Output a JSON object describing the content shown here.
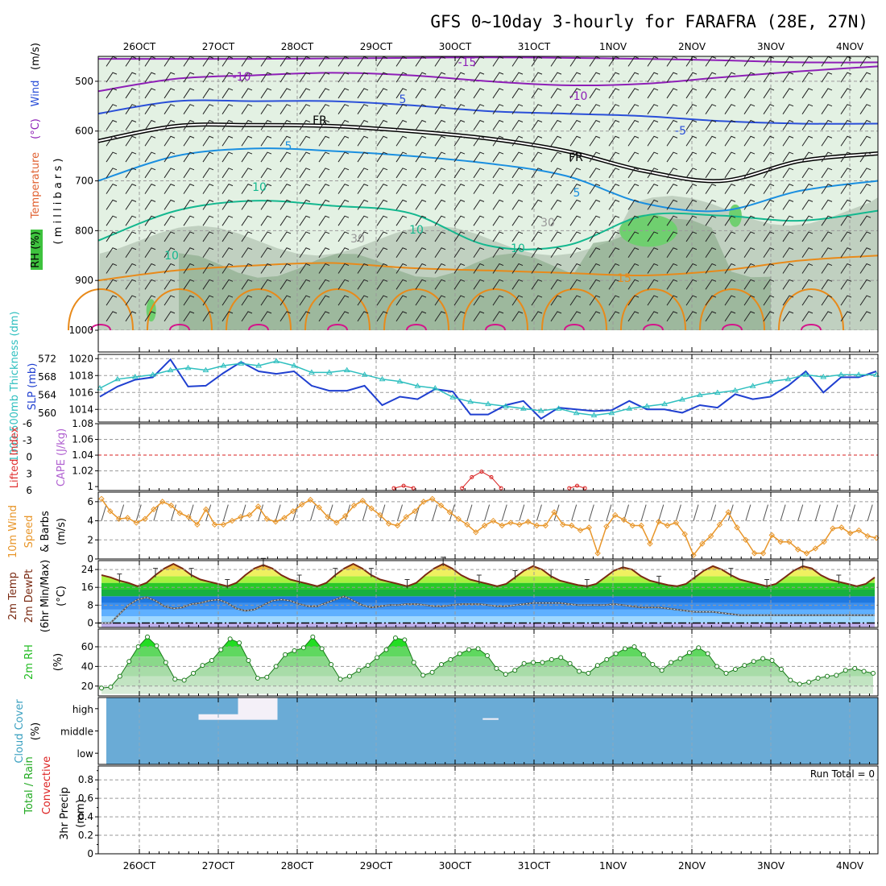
{
  "title": "GFS 0~10day 3-hourly for FARAFRA (28E, 27N)",
  "colors": {
    "rh_light": "#e3f1e3",
    "rh_mid": "#b7c8b7",
    "rh_dark": "#8fae8f",
    "rh_green": "#6fcf6f",
    "temp_purple": "#8e1fb7",
    "temp_blue": "#2a4fd8",
    "temp_black": "#000000",
    "temp_lightblue": "#1a8fe0",
    "temp_teal": "#14b88f",
    "temp_orange": "#e88a1a",
    "slp": "#1f3fd0",
    "thickness": "#2ebfbf",
    "cape": "#d82020",
    "wind10": "#e8962a",
    "temp2m": "#7a2a12",
    "rh2m": "#22bb22",
    "cloud": "#6aabd6",
    "precip_green": "#22aa22",
    "precip_red": "#dd2222"
  },
  "chart_data": [
    {
      "type": "area",
      "id": "upper_air",
      "ylabel_parts": [
        "RH (%)",
        "Temperature",
        "(°C)",
        "Wind",
        "(m/s)"
      ],
      "ylabel2": "( m i l l i b a r s )",
      "ylim": [
        1000,
        450
      ],
      "ytick_values": [
        500,
        600,
        700,
        800,
        900,
        1000
      ],
      "ytick_labels": [
        "500",
        "600",
        "700",
        "800",
        "900",
        "1000"
      ],
      "xtick_labels": [
        "26OCT",
        "27OCT",
        "28OCT",
        "29OCT",
        "30OCT",
        "31OCT",
        "1NOV",
        "2NOV",
        "3NOV",
        "4NOV"
      ],
      "contour_labels": [
        "-15",
        "-10",
        "-10",
        "5",
        "-5",
        "FR",
        "FR",
        "5",
        "5",
        "10",
        "10",
        "30",
        "30",
        "10",
        "10",
        "15"
      ],
      "isotherms": [
        {
          "name": "-15",
          "color": "#8e1fb7",
          "p": [
            455,
            455,
            455,
            454,
            453,
            452,
            453,
            455,
            458,
            462,
            462
          ]
        },
        {
          "name": "-10",
          "color": "#8e1fb7",
          "p": [
            520,
            495,
            488,
            483,
            488,
            500,
            508,
            505,
            492,
            480,
            470
          ]
        },
        {
          "name": "-5",
          "color": "#2a4fd8",
          "p": [
            565,
            540,
            540,
            540,
            548,
            560,
            565,
            570,
            580,
            585,
            585
          ]
        },
        {
          "name": "FR",
          "color": "#000000",
          "p": [
            620,
            590,
            588,
            590,
            600,
            615,
            640,
            680,
            700,
            660,
            645
          ]
        },
        {
          "name": "5",
          "color": "#1a8fe0",
          "p": [
            700,
            650,
            635,
            640,
            650,
            665,
            690,
            745,
            760,
            720,
            700
          ]
        },
        {
          "name": "10",
          "color": "#14b88f",
          "p": [
            820,
            760,
            740,
            750,
            765,
            830,
            830,
            770,
            770,
            780,
            760
          ]
        },
        {
          "name": "15",
          "color": "#e88a1a",
          "p": [
            900,
            880,
            870,
            865,
            875,
            880,
            885,
            890,
            880,
            860,
            850
          ]
        }
      ]
    },
    {
      "type": "line",
      "id": "slp_thickness",
      "ylabel_left": "1000-500mb Thickness (dm)",
      "ylabel_right": "SLP (mb)",
      "left_ticks": [
        "572",
        "568",
        "564",
        "560"
      ],
      "left_ylim": [
        558,
        573
      ],
      "right_ticks": [
        "1020",
        "1018",
        "1016",
        "1014"
      ],
      "right_ylim": [
        1012.5,
        1020.5
      ],
      "series": [
        {
          "name": "SLP",
          "axis": "right",
          "values": [
            1015.5,
            1016.7,
            1017.5,
            1017.8,
            1019.9,
            1016.7,
            1016.8,
            1018.3,
            1019.6,
            1018.5,
            1018.2,
            1018.5,
            1016.8,
            1016.2,
            1016.2,
            1016.8,
            1014.5,
            1015.5,
            1015.2,
            1016.4,
            1016.1,
            1013.4,
            1013.4,
            1014.5,
            1015.0,
            1012.9,
            1014.2,
            1014.0,
            1013.8,
            1013.9,
            1015.0,
            1014.0,
            1014.0,
            1013.6,
            1014.5,
            1014.2,
            1015.8,
            1015.2,
            1015.5,
            1016.8,
            1018.5,
            1016.0,
            1017.8,
            1017.8,
            1018.5
          ]
        },
        {
          "name": "Thickness",
          "axis": "left",
          "values": [
            565.5,
            567.5,
            568.0,
            568.5,
            569.5,
            570.0,
            569.5,
            570.5,
            571.0,
            570.5,
            571.5,
            570.5,
            569.0,
            569.0,
            569.5,
            568.5,
            567.5,
            567.0,
            566.0,
            565.5,
            563.5,
            562.5,
            562.0,
            561.5,
            561.0,
            560.5,
            561.0,
            560.0,
            559.5,
            560.0,
            561.0,
            561.5,
            562.0,
            563.0,
            564.0,
            564.5,
            565.0,
            566.0,
            567.0,
            567.5,
            568.5,
            568.0,
            568.5,
            568.5,
            568.5
          ]
        }
      ]
    },
    {
      "type": "line",
      "id": "cape_li",
      "ylabel_left": "Lifted Index",
      "ylabel_right": "CAPE (J/kg)",
      "left_ticks": [
        "-6",
        "-3",
        "0",
        "3",
        "6"
      ],
      "right_ticks": [
        "1.08",
        "1.06",
        "1.04",
        "1.02",
        "1"
      ],
      "right_ylim": [
        0.995,
        1.08
      ],
      "series": [
        {
          "name": "CAPE",
          "segments": [
            {
              "x": [
                15.0,
                15.5,
                16.0
              ],
              "values": [
                0.998,
                1.001,
                0.998
              ]
            },
            {
              "x": [
                18.5,
                19.0,
                19.5,
                20.0,
                20.5
              ],
              "values": [
                0.998,
                1.012,
                1.019,
                1.012,
                0.998
              ]
            },
            {
              "x": [
                24.0,
                24.4,
                24.8
              ],
              "values": [
                0.998,
                1.001,
                0.998
              ]
            }
          ]
        }
      ]
    },
    {
      "type": "line",
      "id": "wind10",
      "ylabel_parts": [
        "10m Wind",
        "Speed",
        "& Barbs",
        "(m/s)"
      ],
      "yticks": [
        "0",
        "2",
        "4",
        "6"
      ],
      "ylim": [
        0,
        7
      ],
      "series": [
        {
          "name": "Speed",
          "values": [
            6.3,
            5.0,
            4.2,
            4.3,
            3.8,
            4.2,
            5.2,
            6.0,
            5.6,
            4.8,
            4.4,
            3.6,
            5.2,
            3.6,
            3.6,
            4.0,
            4.4,
            4.6,
            5.5,
            4.2,
            3.9,
            4.3,
            5.0,
            5.7,
            6.2,
            5.4,
            4.4,
            3.8,
            4.5,
            5.6,
            6.1,
            5.3,
            4.6,
            3.7,
            3.5,
            4.4,
            5.0,
            6.0,
            6.3,
            5.6,
            4.9,
            4.2,
            3.6,
            2.8,
            3.5,
            4.0,
            3.5,
            3.8,
            3.6,
            3.9,
            3.5,
            3.5,
            4.9,
            3.6,
            3.5,
            3.0,
            3.3,
            0.6,
            3.4,
            4.6,
            4.1,
            3.5,
            3.5,
            1.6,
            3.9,
            3.5,
            3.8,
            2.6,
            0.4,
            1.6,
            2.4,
            3.6,
            4.9,
            3.3,
            2.0,
            0.6,
            0.6,
            2.5,
            1.8,
            1.8,
            1.0,
            0.6,
            1.1,
            1.8,
            3.2,
            3.3,
            2.7,
            3.0,
            2.4,
            2.2
          ]
        }
      ]
    },
    {
      "type": "area",
      "id": "temp2m",
      "ylabel_parts": [
        "2m Temp",
        "2m DewPt",
        "(6hr Min/Max)",
        "(°C)"
      ],
      "yticks": [
        "0",
        "8",
        "16",
        "24"
      ],
      "ylim": [
        -2,
        28
      ],
      "series": [
        {
          "name": "Temp",
          "values": [
            21.5,
            20.5,
            19.0,
            18.0,
            16.5,
            18.0,
            21.5,
            24.5,
            26.5,
            24.5,
            21.5,
            19.5,
            18.5,
            17.5,
            16.5,
            18.0,
            21.5,
            24.5,
            26.0,
            24.5,
            21.5,
            19.5,
            18.5,
            17.5,
            16.5,
            18.0,
            21.5,
            24.5,
            26.5,
            24.5,
            21.5,
            19.5,
            18.5,
            17.5,
            16.5,
            18.0,
            21.5,
            24.5,
            26.5,
            24.5,
            21.5,
            19.5,
            18.5,
            17.5,
            16.5,
            17.5,
            20.5,
            23.5,
            25.5,
            24.0,
            21.0,
            19.0,
            18.0,
            17.0,
            16.5,
            17.5,
            20.5,
            23.5,
            25.0,
            24.0,
            21.0,
            19.0,
            18.0,
            17.0,
            16.5,
            17.5,
            20.5,
            23.5,
            25.5,
            24.0,
            21.5,
            19.5,
            18.5,
            17.5,
            16.5,
            17.5,
            20.5,
            23.5,
            25.5,
            24.5,
            21.5,
            19.5,
            18.5,
            17.5,
            16.5,
            17.5,
            20.5
          ]
        },
        {
          "name": "DewPt",
          "values": [
            0,
            0,
            4,
            8,
            10.5,
            11.5,
            10,
            7.5,
            6.5,
            7,
            8.5,
            9,
            10,
            10.5,
            9,
            6.5,
            5.5,
            6,
            8,
            10,
            10.5,
            10,
            8.5,
            7.5,
            7.5,
            9,
            10.5,
            12,
            10,
            8,
            7,
            7.5,
            8,
            8,
            8.5,
            8.5,
            8,
            7.5,
            7.5,
            8,
            8.5,
            8.5,
            8.5,
            8,
            7.5,
            7.5,
            8,
            8.5,
            9,
            9,
            9,
            9,
            8.5,
            8,
            8,
            8,
            8,
            8.5,
            8,
            7.5,
            7,
            7,
            7,
            6.5,
            6,
            5.5,
            5,
            5,
            5,
            4.5,
            4,
            3.5,
            3.5,
            3.5,
            3.5,
            3.5,
            3.5,
            3.5,
            3.5,
            3.5,
            3.5,
            3.5,
            3.5,
            3.5,
            3.5,
            3.5,
            3.5
          ]
        }
      ]
    },
    {
      "type": "area",
      "id": "rh2m",
      "ylabel": "2m RH",
      "yunit": "(%)",
      "yticks": [
        "20",
        "40",
        "60"
      ],
      "ylim": [
        10,
        78
      ],
      "series": [
        {
          "name": "RH",
          "values": [
            18,
            19,
            30,
            45,
            60,
            70,
            61,
            44,
            27,
            26,
            33,
            41,
            46,
            57,
            68,
            64,
            46,
            28,
            29,
            40,
            52,
            56,
            59,
            70,
            58,
            42,
            27,
            30,
            36,
            41,
            49,
            57,
            69,
            67,
            44,
            31,
            34,
            42,
            47,
            53,
            57,
            58,
            51,
            38,
            32,
            36,
            43,
            44,
            44,
            47,
            49,
            43,
            35,
            33,
            41,
            47,
            53,
            58,
            60,
            52,
            42,
            36,
            44,
            48,
            54,
            59,
            53,
            40,
            33,
            37,
            41,
            45,
            48,
            46,
            37,
            26,
            22,
            24,
            28,
            30,
            31,
            36,
            38,
            35,
            33
          ]
        }
      ]
    },
    {
      "type": "heatmap",
      "id": "cloud",
      "ylabel": "Cloud Cover",
      "yunit": "(%)",
      "rows": [
        "high",
        "middle",
        "low"
      ],
      "cells": [
        {
          "x": [
            0.75,
            1.25
          ],
          "row": "high",
          "frac": 0.25
        },
        {
          "x": [
            1.25,
            1.75
          ],
          "row": "high",
          "frac": 1.0
        },
        {
          "x": [
            4.35,
            4.55
          ],
          "row": "high",
          "frac": 0.05
        }
      ]
    },
    {
      "type": "bar",
      "id": "precip",
      "ylabel_parts": [
        "Total / Rain",
        "Convective",
        "3hr Precip",
        "(mm)"
      ],
      "yticks": [
        "0",
        "0.2",
        "0.4",
        "0.6",
        "0.8"
      ],
      "ylim": [
        0,
        0.95
      ],
      "annotation": "Run Total = 0",
      "values": []
    }
  ]
}
